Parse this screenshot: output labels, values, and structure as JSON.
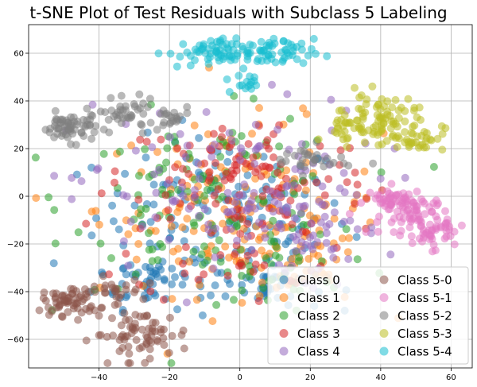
{
  "chart_data": {
    "type": "scatter",
    "title": "t-SNE Plot of Test Residuals with Subclass 5 Labeling",
    "xlabel": "",
    "ylabel": "",
    "xlim": [
      -60,
      66
    ],
    "ylim": [
      -72,
      72
    ],
    "xticks": [
      -40,
      -20,
      0,
      20,
      40,
      60
    ],
    "yticks": [
      -60,
      -40,
      -20,
      0,
      20,
      40,
      60
    ],
    "grid": true,
    "legend": {
      "position": "lower-right",
      "columns": 2
    },
    "series": [
      {
        "name": "Class 0",
        "color": "#1f77b4",
        "clusters": [
          {
            "cx": -5,
            "cy": -8,
            "sx": 18,
            "sy": 16,
            "n": 140
          },
          {
            "cx": -25,
            "cy": -35,
            "sx": 8,
            "sy": 6,
            "n": 50
          },
          {
            "cx": 8,
            "cy": -38,
            "sx": 8,
            "sy": 5,
            "n": 40
          }
        ]
      },
      {
        "name": "Class 1",
        "color": "#ff7f0e",
        "clusters": [
          {
            "cx": 0,
            "cy": -5,
            "sx": 20,
            "sy": 18,
            "n": 150
          },
          {
            "cx": 15,
            "cy": -30,
            "sx": 10,
            "sy": 8,
            "n": 40
          }
        ]
      },
      {
        "name": "Class 2",
        "color": "#2ca02c",
        "clusters": [
          {
            "cx": -8,
            "cy": -2,
            "sx": 20,
            "sy": 18,
            "n": 130
          },
          {
            "cx": 10,
            "cy": -30,
            "sx": 10,
            "sy": 8,
            "n": 30
          }
        ]
      },
      {
        "name": "Class 3",
        "color": "#d62728",
        "clusters": [
          {
            "cx": 2,
            "cy": 10,
            "sx": 18,
            "sy": 12,
            "n": 90
          },
          {
            "cx": 0,
            "cy": -15,
            "sx": 15,
            "sy": 15,
            "n": 60
          }
        ]
      },
      {
        "name": "Class 4",
        "color": "#9467bd",
        "clusters": [
          {
            "cx": -5,
            "cy": 0,
            "sx": 22,
            "sy": 20,
            "n": 130
          },
          {
            "cx": 20,
            "cy": -15,
            "sx": 10,
            "sy": 10,
            "n": 40
          }
        ]
      },
      {
        "name": "Class 5-0",
        "color": "#8c564b",
        "clusters": [
          {
            "cx": -48,
            "cy": -44,
            "sx": 4,
            "sy": 3,
            "n": 60
          },
          {
            "cx": -36,
            "cy": -40,
            "sx": 4,
            "sy": 3,
            "n": 25
          },
          {
            "cx": -28,
            "cy": -58,
            "sx": 7,
            "sy": 5,
            "n": 70
          }
        ]
      },
      {
        "name": "Class 5-1",
        "color": "#e377c2",
        "clusters": [
          {
            "cx": 50,
            "cy": -8,
            "sx": 5,
            "sy": 4,
            "n": 70
          },
          {
            "cx": 44,
            "cy": -2,
            "sx": 4,
            "sy": 3,
            "n": 40
          },
          {
            "cx": 55,
            "cy": -16,
            "sx": 3,
            "sy": 3,
            "n": 30
          }
        ]
      },
      {
        "name": "Class 5-2",
        "color": "#7f7f7f",
        "clusters": [
          {
            "cx": -48,
            "cy": 29,
            "sx": 4,
            "sy": 3,
            "n": 60
          },
          {
            "cx": -32,
            "cy": 34,
            "sx": 4,
            "sy": 3,
            "n": 40
          },
          {
            "cx": -20,
            "cy": 32,
            "sx": 3,
            "sy": 3,
            "n": 20
          },
          {
            "cx": 20,
            "cy": 15,
            "sx": 6,
            "sy": 3,
            "n": 30
          }
        ]
      },
      {
        "name": "Class 5-3",
        "color": "#bcbd22",
        "clusters": [
          {
            "cx": 40,
            "cy": 33,
            "sx": 5,
            "sy": 5,
            "n": 70
          },
          {
            "cx": 50,
            "cy": 25,
            "sx": 4,
            "sy": 3,
            "n": 40
          },
          {
            "cx": 30,
            "cy": 30,
            "sx": 3,
            "sy": 4,
            "n": 25
          }
        ]
      },
      {
        "name": "Class 5-4",
        "color": "#17becf",
        "clusters": [
          {
            "cx": -9,
            "cy": 60,
            "sx": 6,
            "sy": 3,
            "n": 60
          },
          {
            "cx": 9,
            "cy": 60,
            "sx": 6,
            "sy": 3,
            "n": 55
          },
          {
            "cx": 2,
            "cy": 48,
            "sx": 3,
            "sy": 3,
            "n": 15
          }
        ]
      }
    ]
  }
}
